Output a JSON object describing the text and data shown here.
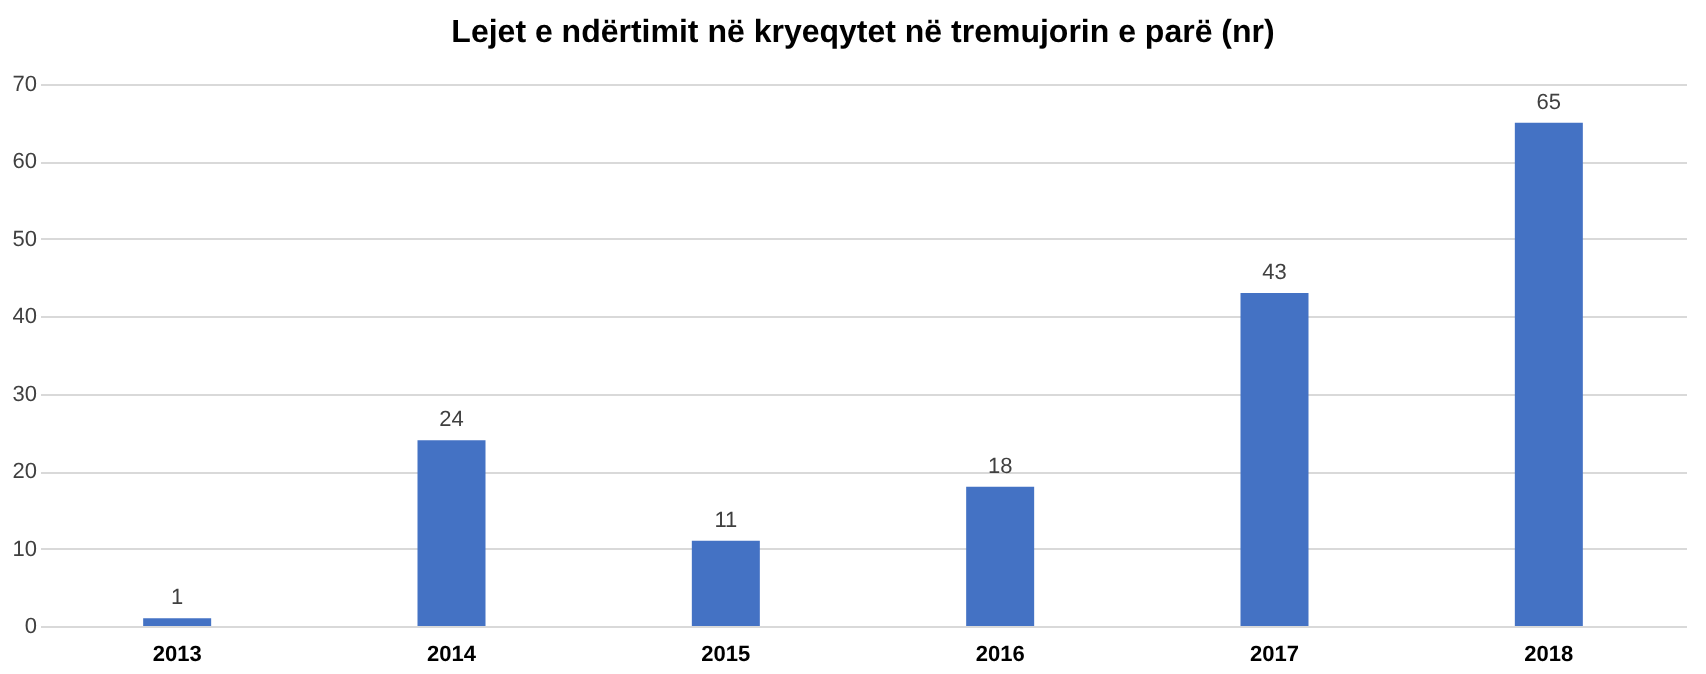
{
  "chart_data": {
    "type": "bar",
    "title": "Lejet e ndërtimit në kryeqytet në tremujorin e parë (nr)",
    "categories": [
      "2013",
      "2014",
      "2015",
      "2016",
      "2017",
      "2018"
    ],
    "values": [
      1,
      24,
      11,
      18,
      43,
      65
    ],
    "color": "#4472c4",
    "ylim": [
      0,
      70
    ],
    "yticks": [
      0,
      10,
      20,
      30,
      40,
      50,
      60,
      70
    ],
    "grid": "y",
    "data_labels": true
  }
}
